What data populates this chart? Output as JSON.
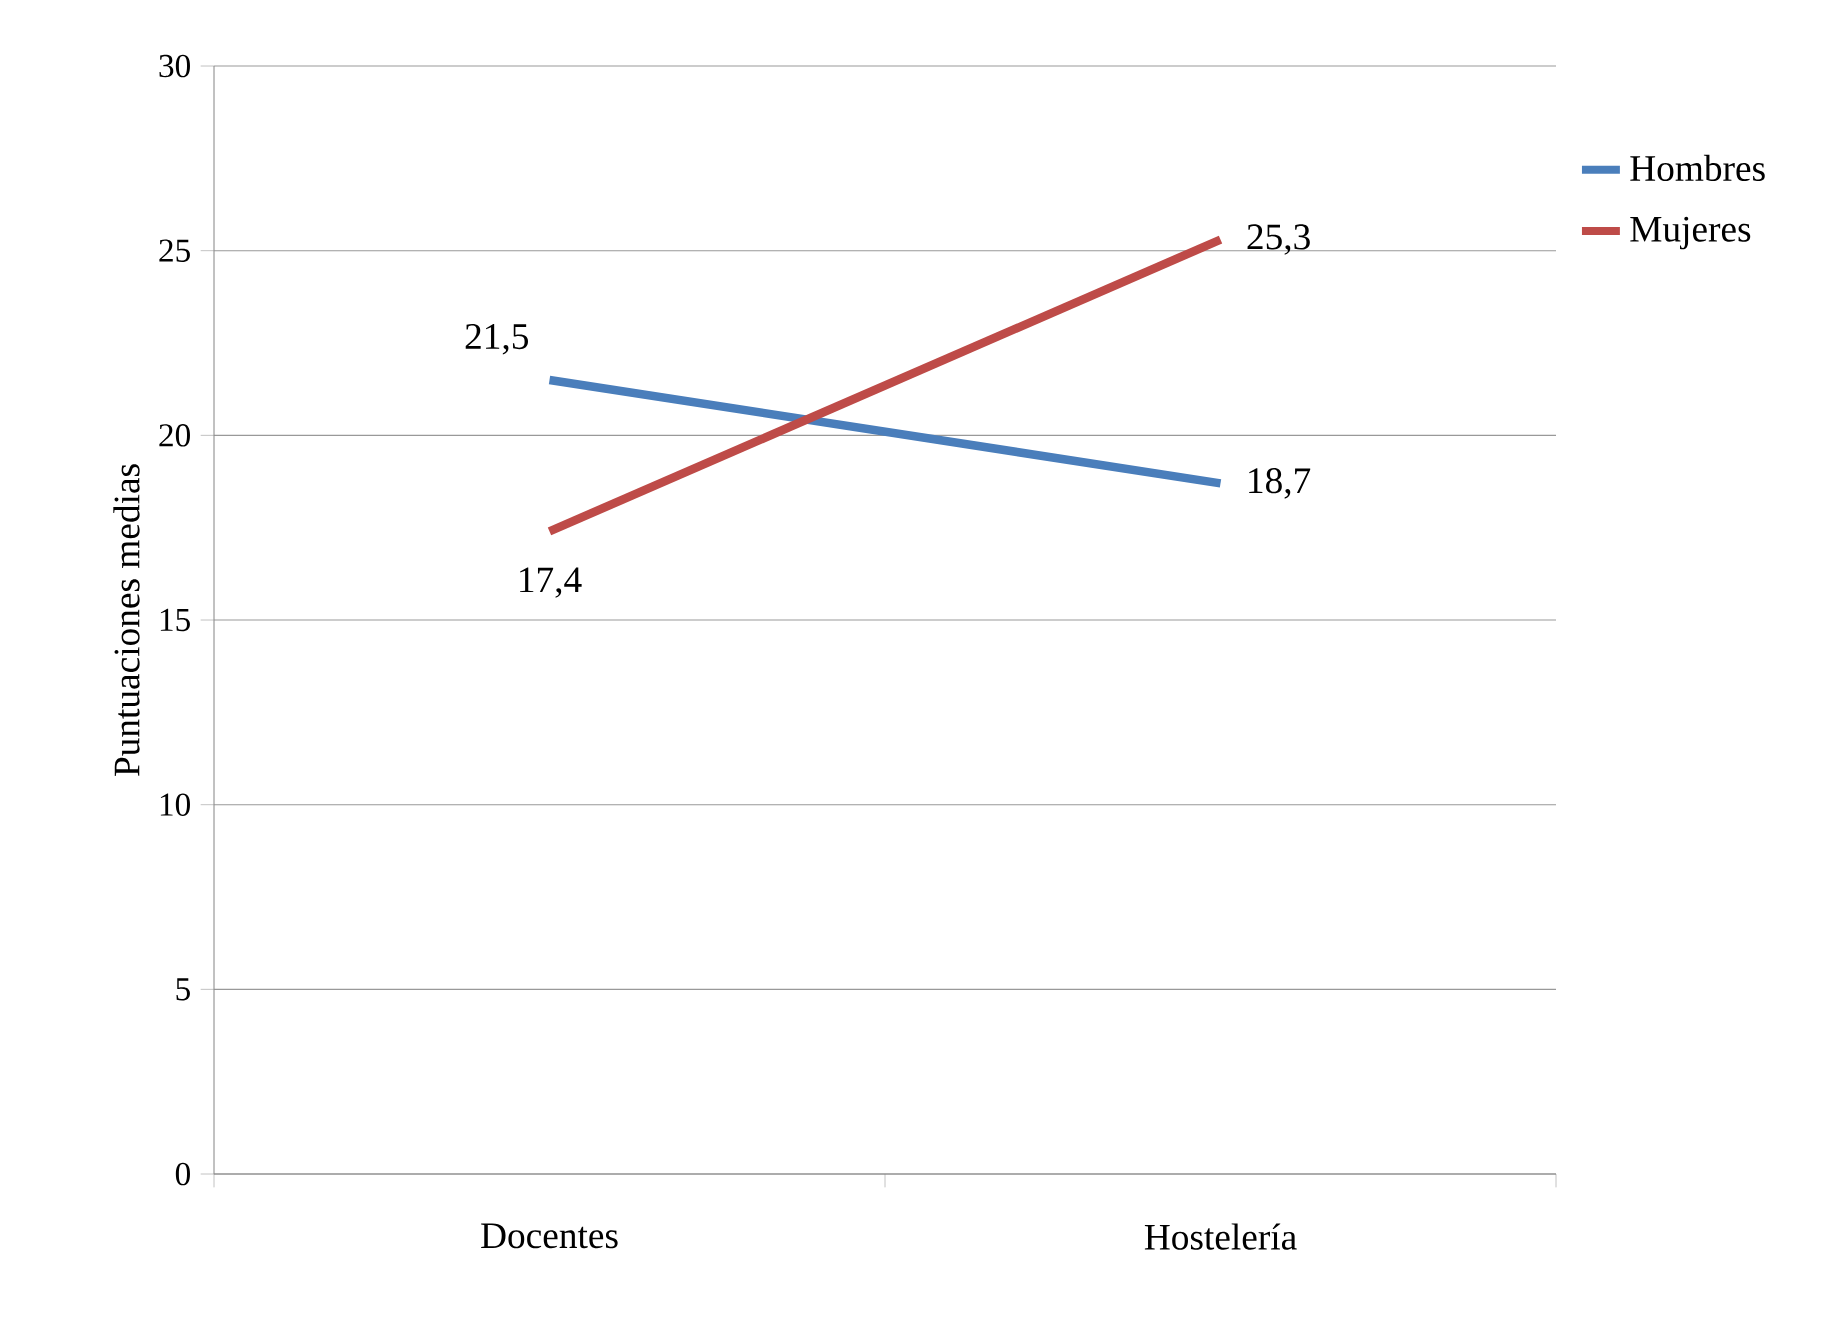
{
  "chart_data": {
    "type": "line",
    "ylabel": "Puntuaciones medias",
    "categories": [
      "Docentes",
      "Hostelería"
    ],
    "series": [
      {
        "name": "Hombres",
        "color": "#4a7ebb",
        "values": [
          21.5,
          18.7
        ],
        "value_labels": [
          "21,5",
          "18,7"
        ]
      },
      {
        "name": "Mujeres",
        "color": "#be4b48",
        "values": [
          17.4,
          25.3
        ],
        "value_labels": [
          "17,4",
          "25,3"
        ]
      }
    ],
    "ylim": [
      0,
      30
    ],
    "yticks": [
      0,
      5,
      10,
      15,
      20,
      25,
      30
    ],
    "grid": "y",
    "legend": "right",
    "marker": "none",
    "line_style": "solid"
  }
}
